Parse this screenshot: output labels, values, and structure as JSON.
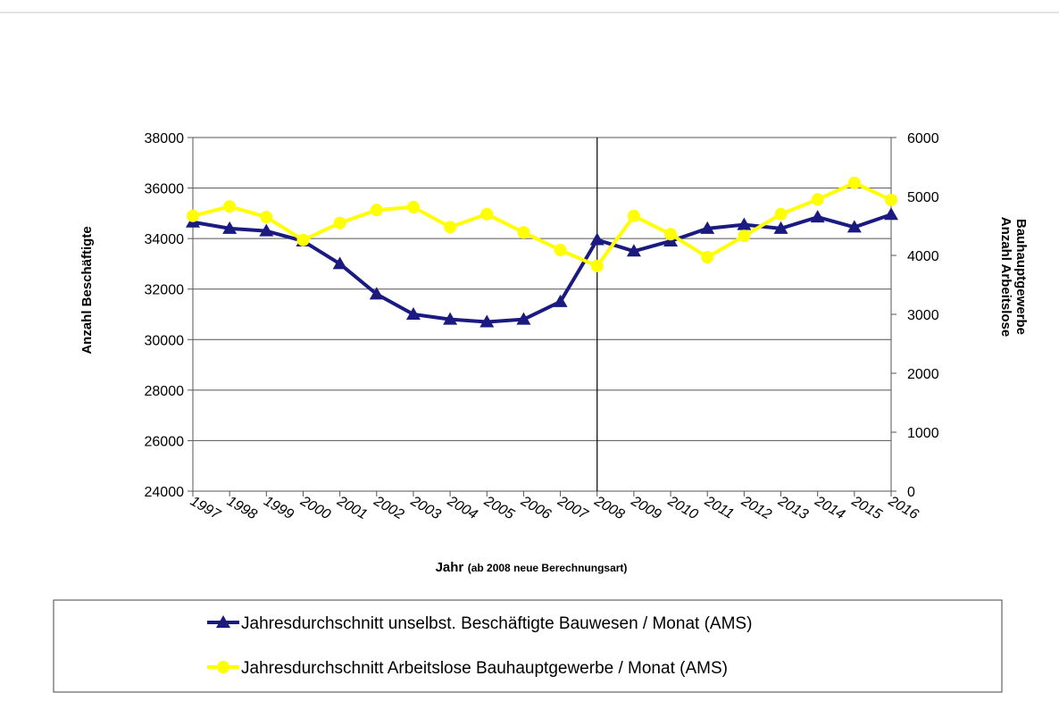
{
  "chart_data": {
    "type": "line",
    "x_label": "Jahr",
    "x_label_note": "(ab 2008 neue Berechnungsart)",
    "y_label": "Anzahl Beschäftigte",
    "y2_label": [
      "Anzahl Arbeitslose",
      "Bauhauptgewerbe"
    ],
    "categories": [
      "1997",
      "1998",
      "1999",
      "2000",
      "2001",
      "2002",
      "2003",
      "2004",
      "2005",
      "2006",
      "2007",
      "2008",
      "2009",
      "2010",
      "2011",
      "2012",
      "2013",
      "2014",
      "2015",
      "2016"
    ],
    "vertical_line": "2008",
    "ylim": [
      24000,
      38000
    ],
    "yticks": [
      24000,
      26000,
      28000,
      30000,
      32000,
      34000,
      36000,
      38000
    ],
    "y2lim": [
      0,
      6000
    ],
    "y2ticks": [
      0,
      1000,
      2000,
      3000,
      4000,
      5000,
      6000
    ],
    "grid": true,
    "series": [
      {
        "name": "Jahresdurchschnitt unselbst. Beschäftigte Bauwesen / Monat (AMS)",
        "color": "#1a1a80",
        "marker": "triangle",
        "values": [
          34650,
          34400,
          34300,
          33900,
          33000,
          31800,
          31000,
          30800,
          30700,
          30800,
          31500,
          33950,
          33500,
          33900,
          34400,
          34550,
          34400,
          34850,
          34450,
          34950
        ]
      },
      {
        "name": "Jahresdurchschnitt Arbeitslose Bauhauptgewerbe / Monat (AMS)",
        "color": "#ffff00",
        "marker": "circle",
        "axis": "y2",
        "values": [
          4670,
          4830,
          4650,
          4260,
          4550,
          4770,
          4820,
          4480,
          4700,
          4390,
          4090,
          3820,
          4670,
          4360,
          3970,
          4330,
          4700,
          4950,
          5230,
          4940
        ]
      }
    ]
  }
}
